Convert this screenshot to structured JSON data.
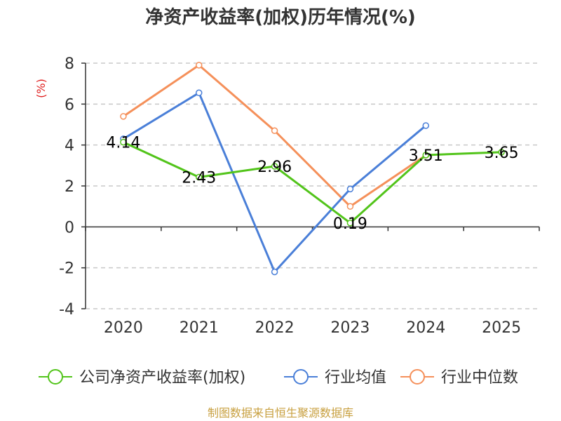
{
  "chart_data": {
    "type": "line",
    "title": "净资产收益率(加权)历年情况(%)",
    "ylabel": "(%)",
    "xlabel": "",
    "categories": [
      "2020",
      "2021",
      "2022",
      "2023",
      "2024",
      "2025"
    ],
    "ylim": [
      -4,
      8
    ],
    "yticks": [
      -4,
      -2,
      0,
      2,
      4,
      6,
      8
    ],
    "grid": "horizontal-dashed",
    "legend_position": "bottom",
    "series": [
      {
        "name": "公司净资产收益率(加权)",
        "color": "#52c41a",
        "values": [
          4.14,
          2.43,
          2.96,
          0.19,
          3.51,
          3.65
        ],
        "labels": [
          "4.14",
          "2.43",
          "2.96",
          "0.19",
          "3.51",
          "3.65"
        ]
      },
      {
        "name": "行业均值",
        "color": "#4a7fd8",
        "values": [
          4.3,
          6.55,
          -2.2,
          1.85,
          4.95,
          null
        ]
      },
      {
        "name": "行业中位数",
        "color": "#f5905a",
        "values": [
          5.4,
          7.9,
          4.7,
          1.0,
          3.5,
          null
        ]
      }
    ]
  },
  "source": "制图数据来自恒生聚源数据库"
}
